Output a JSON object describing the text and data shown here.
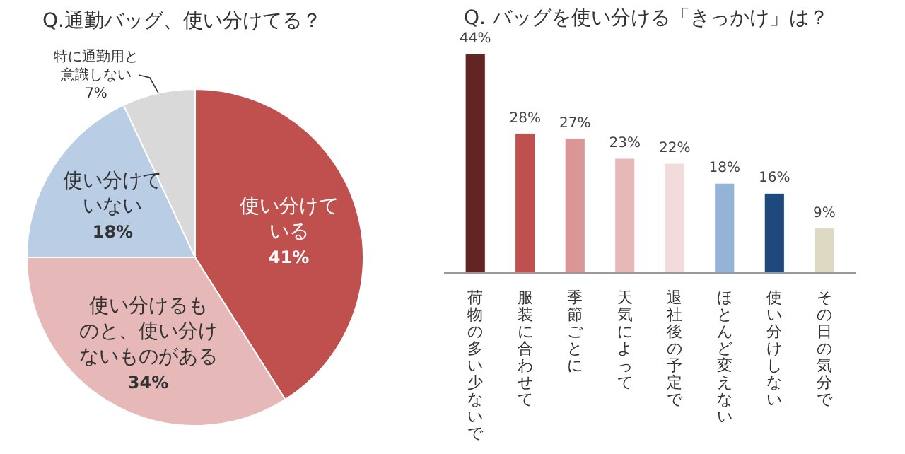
{
  "chart_data": [
    {
      "type": "pie",
      "title": "Q.通勤バッグ、使い分けてる？",
      "categories": [
        "使い分けている",
        "使い分けるものと、使い分けないものがある",
        "使い分けていない",
        "特に通勤用と意識しない"
      ],
      "values": [
        41,
        34,
        18,
        7
      ],
      "value_labels": [
        "41%",
        "34%",
        "18%",
        "7%"
      ],
      "colors": [
        "#c0504d",
        "#e6b9b8",
        "#b9cde5",
        "#d9d9d9"
      ]
    },
    {
      "type": "bar",
      "title": "Q. バッグを使い分ける「きっかけ」は？",
      "categories": [
        "荷物の多い少ないで",
        "服装に合わせて",
        "季節ごとに",
        "天気によって",
        "退社後の予定で",
        "ほとんど変えない",
        "使い分けしない",
        "その日の気分で"
      ],
      "values": [
        44,
        28,
        27,
        23,
        22,
        18,
        16,
        9
      ],
      "value_labels": [
        "44%",
        "28%",
        "27%",
        "23%",
        "22%",
        "18%",
        "16%",
        "9%"
      ],
      "colors": [
        "#632523",
        "#c0504d",
        "#d99694",
        "#e6b9b8",
        "#f2dcdb",
        "#95b3d7",
        "#1f497d",
        "#ddd9c3"
      ]
    }
  ]
}
